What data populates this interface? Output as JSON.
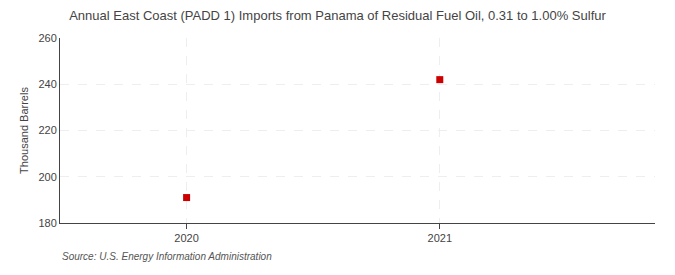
{
  "chart_data": {
    "type": "scatter",
    "title": "Annual East Coast (PADD 1) Imports from Panama of Residual Fuel Oil, 0.31 to 1.00% Sulfur",
    "y_label": "Thousand Barrels",
    "annotations": [
      "Source: U.S. Energy Information Administration"
    ],
    "x": [
      2020,
      2021
    ],
    "values": [
      191,
      242
    ],
    "color": "#cc0000",
    "marker": "square",
    "xlim": [
      2019.5,
      2021.85
    ],
    "xticks": [
      2020,
      2021
    ],
    "ylim": [
      180,
      260
    ],
    "yticks": [
      180,
      200,
      220,
      240,
      260
    ],
    "grid": true
  }
}
